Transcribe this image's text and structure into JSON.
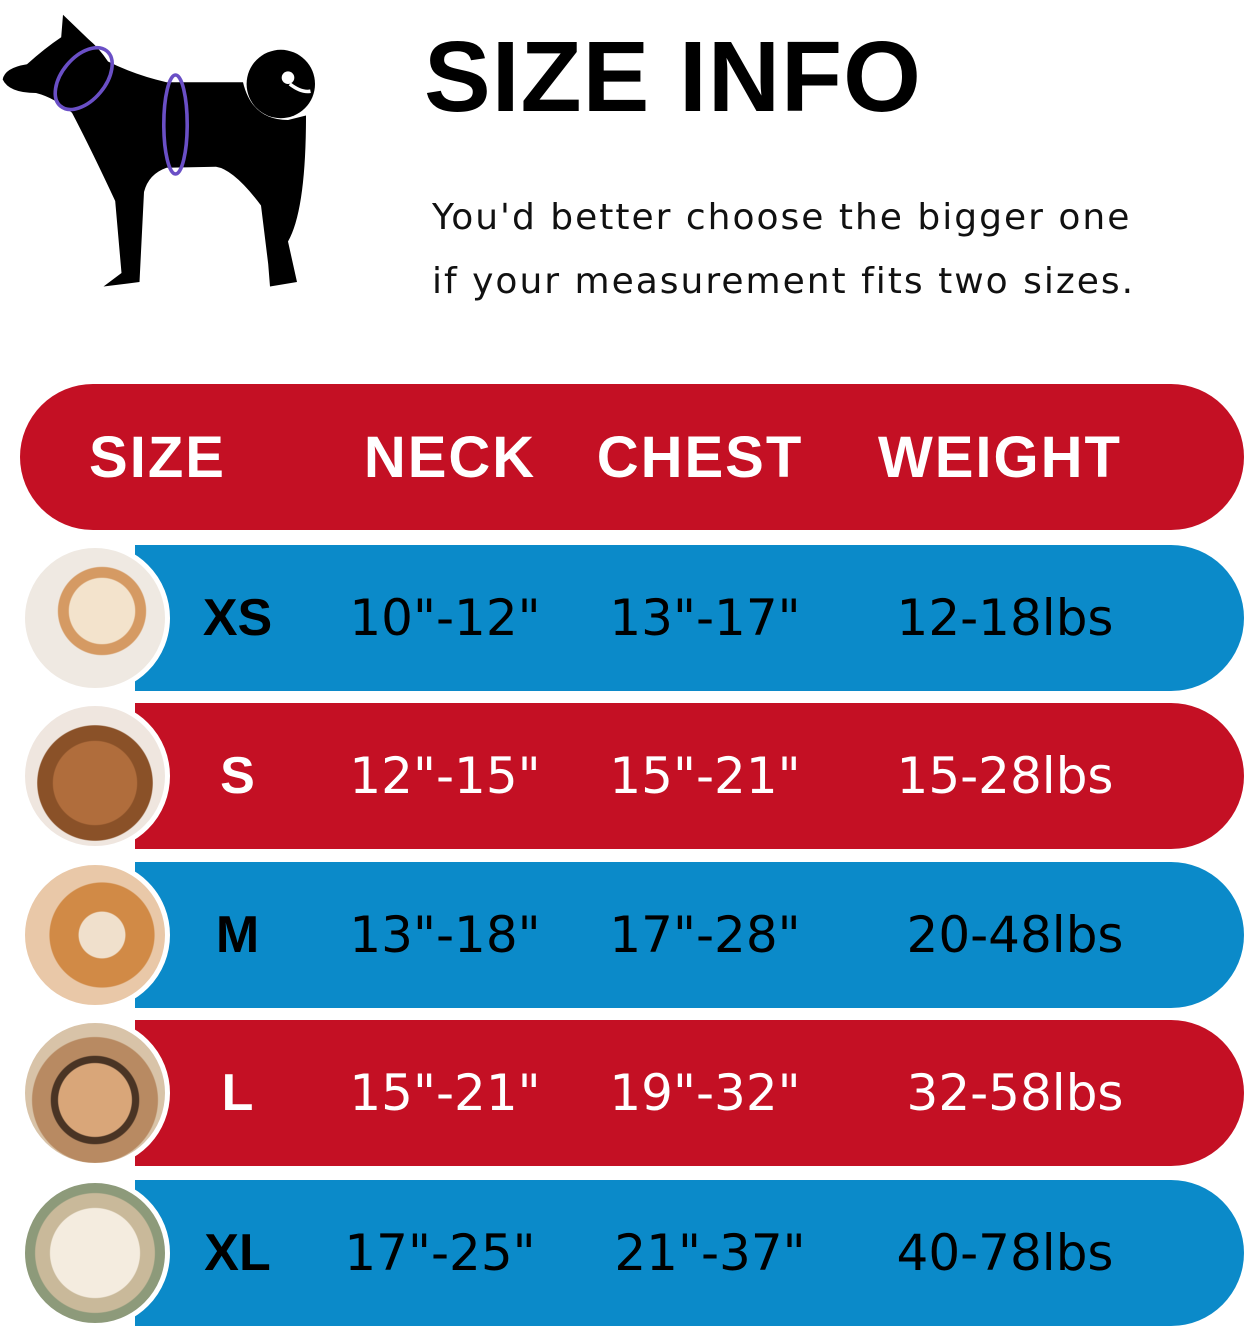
{
  "header": {
    "title": "SIZE INFO",
    "note_line1": "You'd better choose the bigger one",
    "note_line2": "if your measurement fits two sizes."
  },
  "colors": {
    "red": "#c41024",
    "blue": "#0b8ac9",
    "measure_ring": "#6a4fc6"
  },
  "table": {
    "columns": [
      "SIZE",
      "NECK",
      "CHEST",
      "WEIGHT"
    ],
    "rows": [
      {
        "size": "XS",
        "neck": "10\"-12\"",
        "chest": "13\"-17\"",
        "weight": "12-18lbs",
        "photo": "pomeranian-photo"
      },
      {
        "size": "S",
        "neck": "12\"-15\"",
        "chest": "15\"-21\"",
        "weight": "15-28lbs",
        "photo": "poodle-photo"
      },
      {
        "size": "M",
        "neck": "13\"-18\"",
        "chest": "17\"-28\"",
        "weight": "20-48lbs",
        "photo": "shiba-photo"
      },
      {
        "size": "L",
        "neck": "15\"-21\"",
        "chest": "19\"-32\"",
        "weight": "32-58lbs",
        "photo": "french-bulldog-photo"
      },
      {
        "size": "XL",
        "neck": "17\"-25\"",
        "chest": "21\"-37\"",
        "weight": "40-78lbs",
        "photo": "labrador-photo"
      }
    ]
  }
}
